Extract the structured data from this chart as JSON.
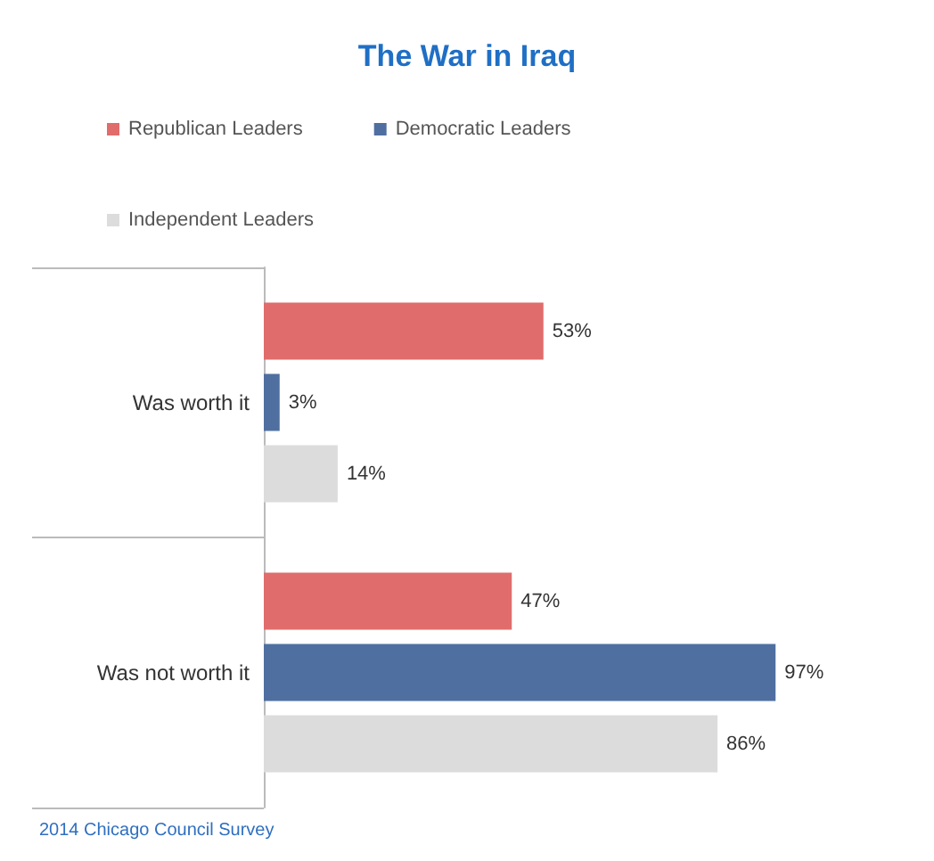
{
  "chart_data": {
    "type": "bar",
    "orientation": "horizontal",
    "title": "The War in Iraq",
    "categories": [
      "Was worth it",
      "Was not worth it"
    ],
    "series": [
      {
        "name": "Republican Leaders",
        "color": "#e06c6c",
        "values": [
          53,
          47
        ],
        "value_labels": [
          "53%",
          "47%"
        ]
      },
      {
        "name": "Democratic Leaders",
        "color": "#4f6fa0",
        "values": [
          3,
          97
        ],
        "value_labels": [
          "3%",
          "97%"
        ]
      },
      {
        "name": "Independent Leaders",
        "color": "#dcdcdc",
        "values": [
          14,
          86
        ],
        "value_labels": [
          "14%",
          "86%"
        ]
      }
    ],
    "legend": "top",
    "annotations": [
      "2014 Chicago Council Survey"
    ]
  }
}
